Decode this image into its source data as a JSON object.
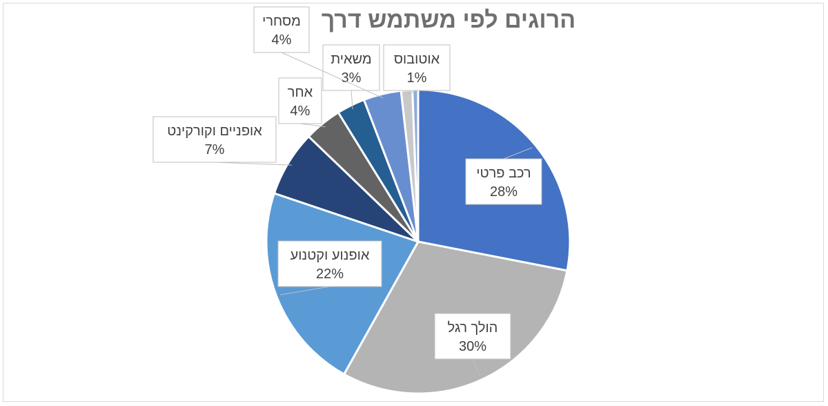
{
  "chart_data": {
    "type": "pie",
    "title": "הרוגים לפי משתמש דרך",
    "slices": [
      {
        "label": "רכב פרטי",
        "percent_label": "28%",
        "value": 28,
        "color": "#4472c4"
      },
      {
        "label": "הולך רגל",
        "percent_label": "30%",
        "value": 30,
        "color": "#b4b4b4"
      },
      {
        "label": "אופנוע וקטנוע",
        "percent_label": "22%",
        "value": 22,
        "color": "#5b9bd5"
      },
      {
        "label": "אופניים וקורקינט",
        "percent_label": "7%",
        "value": 7,
        "color": "#264478"
      },
      {
        "label": "אחר",
        "percent_label": "4%",
        "value": 4,
        "color": "#636363"
      },
      {
        "label": "משאית",
        "percent_label": "3%",
        "value": 3,
        "color": "#255e91"
      },
      {
        "label": "מסחרי",
        "percent_label": "4%",
        "value": 4,
        "color": "#698ed0"
      },
      {
        "label": "אוטובוס",
        "percent_label": "1%",
        "value": 1.2,
        "color": "#c9c9c9"
      },
      {
        "label": "",
        "percent_label": "",
        "value": 0.6,
        "color": "#8faadc"
      }
    ],
    "legend": "none",
    "data_labels": "callouts"
  }
}
